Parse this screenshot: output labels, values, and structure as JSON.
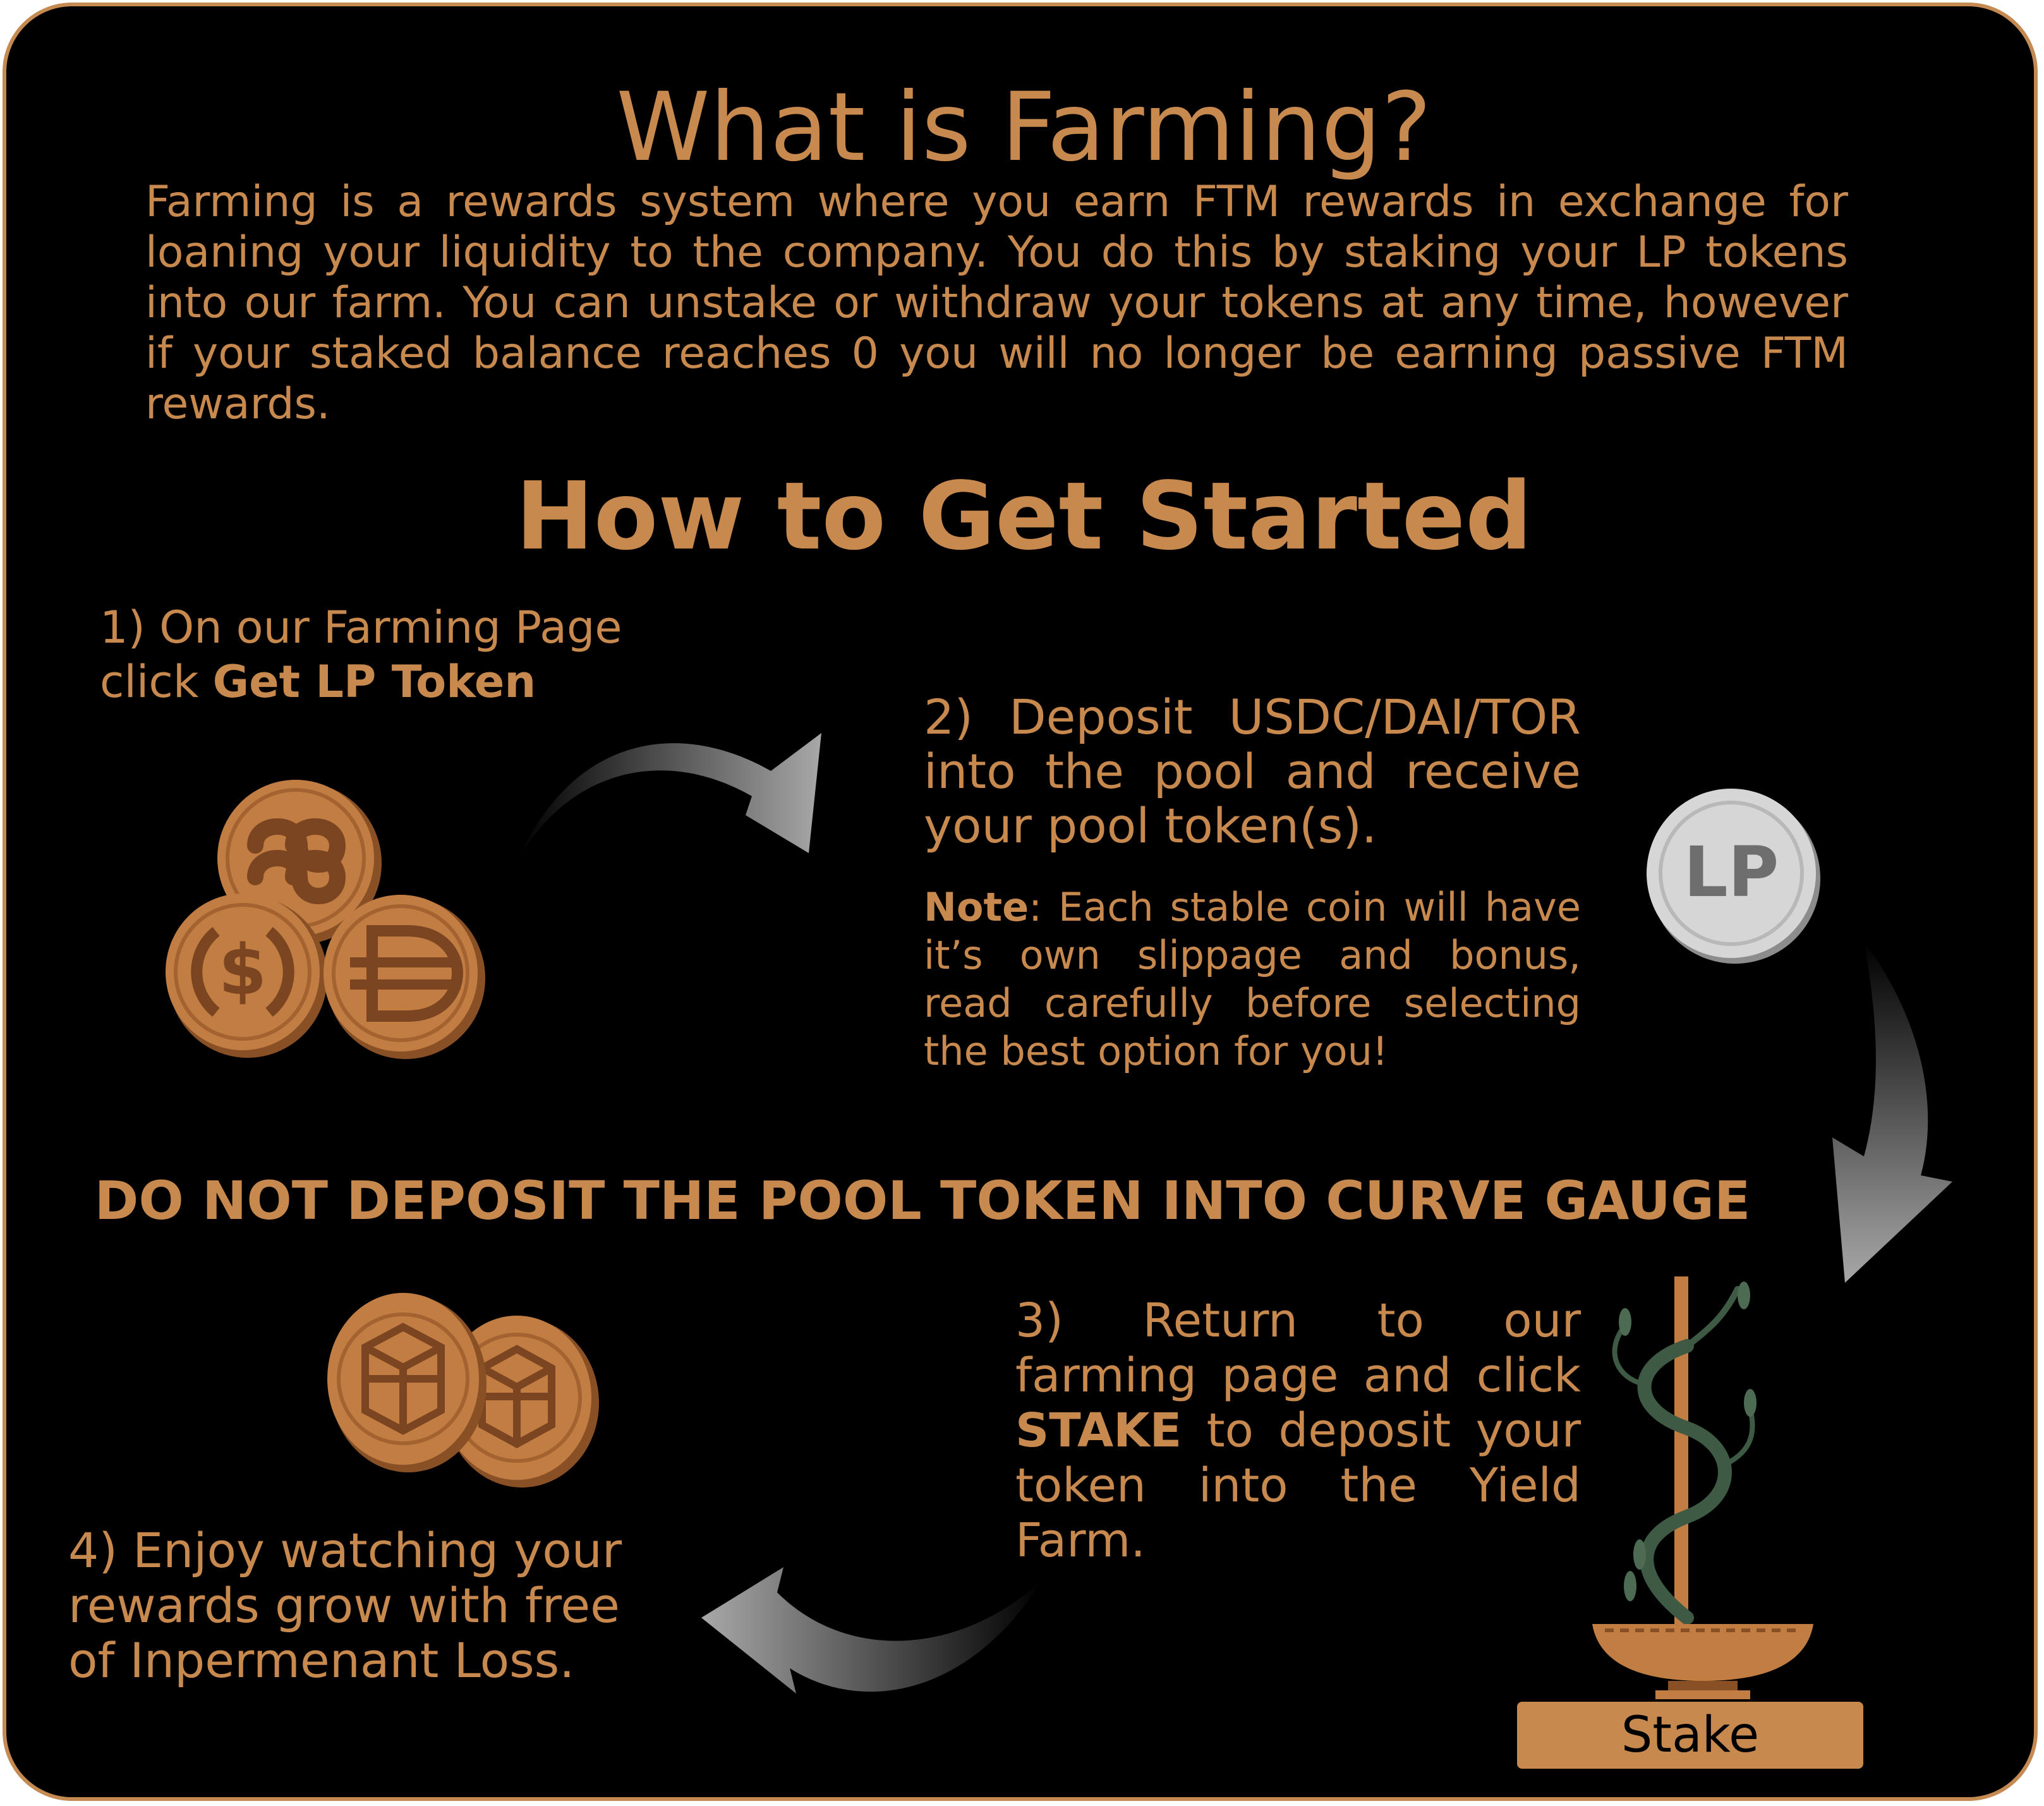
{
  "title": "What is Farming?",
  "intro": "Farming is a rewards system where you earn FTM rewards in exchange for loaning your liquidity to the company. You do this by staking your LP tokens into our farm. You can unstake or withdraw your tokens at any time, however if your staked balance reaches 0 you will no longer be earning passive FTM rewards.",
  "how_to_title": "How to Get Started",
  "step1": {
    "line1": "1) On our Farming Page",
    "prefix": "click ",
    "bold": "Get LP Token"
  },
  "step2": {
    "text": "2) Deposit USDC/DAI/TOR into the pool and receive your pool token(s).",
    "note_label": "Note",
    "note_text": ": Each stable coin will have it’s own slippage and bonus, read carefully before selecting the best option for you!"
  },
  "lp_coin_label": "LP",
  "warning": "DO NOT DEPOSIT THE POOL TOKEN INTO CURVE GAUGE",
  "step3": {
    "prefix": "3) Return to our farming page and click ",
    "bold": "STAKE",
    "suffix": " to deposit your token into the Yield Farm."
  },
  "step4": "4) Enjoy watching your rewards grow with free of Inpermenant Loss.",
  "stake_button": "Stake",
  "icons": [
    "tor-coin-icon",
    "usdc-coin-icon",
    "dai-coin-icon",
    "lp-coin-icon",
    "ftm-coin-icon",
    "plant-pot-icon",
    "arrow-icon"
  ],
  "colors": {
    "background": "#000000",
    "accent": "#c8894f",
    "coin": "#c27d43",
    "coin_dark": "#8a5025",
    "arrow": "#9a9a9a",
    "lp_coin": "#d4d4d4"
  }
}
